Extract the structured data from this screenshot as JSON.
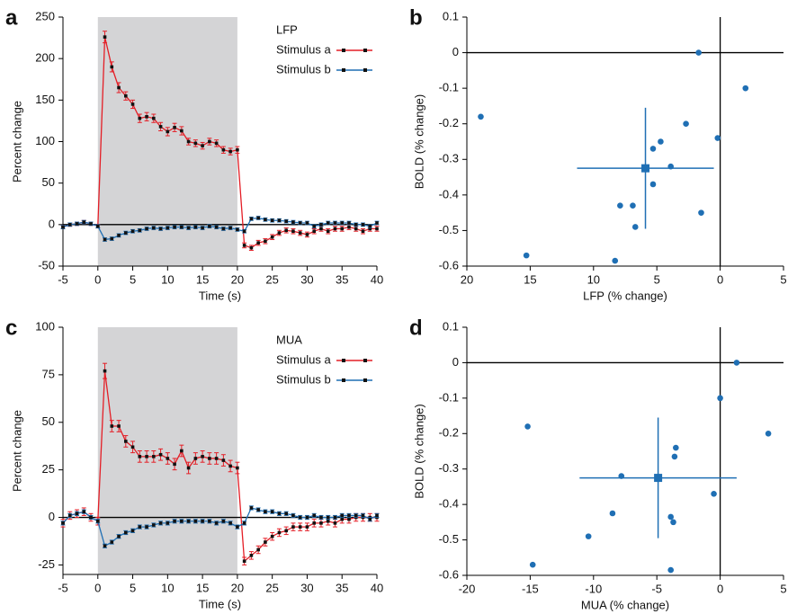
{
  "chart_data": [
    {
      "label": "a",
      "type": "line",
      "xlabel": "Time (s)",
      "ylabel": "Percent change",
      "legend_title": "LFP",
      "xlim": [
        -5,
        40
      ],
      "ylim": [
        -50,
        250
      ],
      "xticks": [
        -5,
        0,
        5,
        10,
        15,
        20,
        25,
        30,
        35,
        40
      ],
      "yticks": [
        -50,
        0,
        50,
        100,
        150,
        200,
        250
      ],
      "shade": [
        0,
        20
      ],
      "x": [
        -5,
        -4,
        -3,
        -2,
        -1,
        0,
        1,
        2,
        3,
        4,
        5,
        6,
        7,
        8,
        9,
        10,
        11,
        12,
        13,
        14,
        15,
        16,
        17,
        18,
        19,
        20,
        21,
        22,
        23,
        24,
        25,
        26,
        27,
        28,
        29,
        30,
        31,
        32,
        33,
        34,
        35,
        36,
        37,
        38,
        39,
        40
      ],
      "series": [
        {
          "name": "Stimulus a",
          "color": "#e41e26",
          "values": [
            -3,
            0,
            1,
            3,
            1,
            -2,
            226,
            190,
            165,
            155,
            145,
            128,
            130,
            128,
            118,
            112,
            117,
            113,
            100,
            98,
            95,
            100,
            98,
            90,
            88,
            90,
            -25,
            -28,
            -22,
            -20,
            -15,
            -10,
            -7,
            -8,
            -10,
            -12,
            -8,
            -5,
            -8,
            -5,
            -5,
            -3,
            -5,
            -8,
            -5,
            -5
          ],
          "errors": [
            2,
            2,
            2,
            2,
            2,
            2,
            7,
            6,
            6,
            5,
            5,
            5,
            5,
            5,
            5,
            5,
            5,
            5,
            4,
            4,
            4,
            4,
            4,
            4,
            4,
            4,
            3,
            3,
            3,
            3,
            3,
            3,
            3,
            3,
            3,
            3,
            3,
            3,
            3,
            3,
            3,
            3,
            3,
            3,
            3,
            3
          ]
        },
        {
          "name": "Stimulus b",
          "color": "#1f6fb4",
          "values": [
            -3,
            0,
            1,
            3,
            1,
            -2,
            -18,
            -17,
            -13,
            -10,
            -8,
            -7,
            -5,
            -4,
            -5,
            -4,
            -3,
            -3,
            -4,
            -3,
            -4,
            -2,
            -3,
            -5,
            -4,
            -6,
            -8,
            7,
            8,
            6,
            5,
            5,
            4,
            3,
            2,
            2,
            -2,
            0,
            2,
            2,
            2,
            2,
            0,
            0,
            -2,
            2
          ],
          "errors": [
            2,
            2,
            2,
            2,
            2,
            2,
            2,
            2,
            2,
            2,
            2,
            2,
            2,
            2,
            2,
            2,
            2,
            2,
            2,
            2,
            2,
            2,
            2,
            2,
            2,
            2,
            2,
            2,
            2,
            2,
            2,
            2,
            2,
            2,
            2,
            2,
            2,
            2,
            2,
            2,
            2,
            2,
            2,
            2,
            2,
            2
          ]
        }
      ]
    },
    {
      "label": "b",
      "type": "scatter",
      "xlabel": "LFP (% change)",
      "ylabel": "BOLD (% change)",
      "color": "#1f6fb4",
      "xlim": [
        -20,
        5
      ],
      "ylim": [
        -0.6,
        0.1
      ],
      "xticks": [
        {
          "value": -20,
          "label": "20"
        },
        {
          "value": -15,
          "label": "15"
        },
        {
          "value": -10,
          "label": "10"
        },
        {
          "value": -5,
          "label": "5"
        },
        0,
        5
      ],
      "yticks": [
        -0.6,
        -0.5,
        -0.4,
        -0.3,
        -0.2,
        -0.1,
        0,
        0.1
      ],
      "x": [
        -1.7,
        2,
        -18.9,
        -2.7,
        -0.2,
        -4.7,
        -5.3,
        -3.9,
        -5.3,
        -7.9,
        -6.9,
        -1.5,
        -6.7,
        -15.3,
        -8.3
      ],
      "values": [
        0,
        -0.1,
        -0.18,
        -0.2,
        -0.24,
        -0.25,
        -0.27,
        -0.32,
        -0.37,
        -0.43,
        -0.43,
        -0.45,
        -0.49,
        -0.57,
        -0.585
      ],
      "mean": {
        "x": -5.9,
        "y": -0.325,
        "xerr": 5.4,
        "yerr": 0.17
      }
    },
    {
      "label": "c",
      "type": "line",
      "xlabel": "Time (s)",
      "ylabel": "Percent change",
      "legend_title": "MUA",
      "xlim": [
        -5,
        40
      ],
      "ylim": [
        -30,
        100
      ],
      "xticks": [
        -5,
        0,
        5,
        10,
        15,
        20,
        25,
        30,
        35,
        40
      ],
      "yticks": [
        -25,
        0,
        25,
        50,
        75,
        100
      ],
      "shade": [
        0,
        20
      ],
      "x": [
        -5,
        -4,
        -3,
        -2,
        -1,
        0,
        1,
        2,
        3,
        4,
        5,
        6,
        7,
        8,
        9,
        10,
        11,
        12,
        13,
        14,
        15,
        16,
        17,
        18,
        19,
        20,
        21,
        22,
        23,
        24,
        25,
        26,
        27,
        28,
        29,
        30,
        31,
        32,
        33,
        34,
        35,
        36,
        37,
        38,
        39,
        40
      ],
      "series": [
        {
          "name": "Stimulus a",
          "color": "#e41e26",
          "values": [
            -3,
            1,
            2,
            3,
            0,
            -2,
            77,
            48,
            48,
            40,
            37,
            32,
            32,
            32,
            33,
            31,
            28,
            35,
            26,
            31,
            32,
            31,
            31,
            30,
            27,
            26,
            -23,
            -20,
            -17,
            -13,
            -10,
            -8,
            -7,
            -5,
            -5,
            -5,
            -3,
            -3,
            -2,
            -3,
            -1,
            -1,
            0,
            0,
            0,
            0
          ],
          "errors": [
            2,
            2,
            2,
            2,
            2,
            2,
            4,
            3,
            3,
            3,
            3,
            3,
            3,
            3,
            3,
            3,
            3,
            3,
            3,
            3,
            3,
            3,
            3,
            3,
            3,
            3,
            2,
            2,
            2,
            2,
            2,
            2,
            2,
            2,
            2,
            2,
            2,
            2,
            2,
            2,
            2,
            2,
            2,
            2,
            2,
            2
          ]
        },
        {
          "name": "Stimulus b",
          "color": "#1f6fb4",
          "values": [
            -3,
            1,
            2,
            3,
            0,
            -2,
            -15,
            -13,
            -10,
            -8,
            -7,
            -5,
            -5,
            -4,
            -3,
            -3,
            -2,
            -2,
            -2,
            -2,
            -2,
            -2,
            -3,
            -2,
            -3,
            -5,
            -3,
            5,
            4,
            3,
            3,
            2,
            2,
            1,
            0,
            0,
            1,
            0,
            0,
            0,
            1,
            1,
            1,
            1,
            -1,
            1
          ],
          "errors": [
            1,
            1,
            1,
            1,
            1,
            1,
            1,
            1,
            1,
            1,
            1,
            1,
            1,
            1,
            1,
            1,
            1,
            1,
            1,
            1,
            1,
            1,
            1,
            1,
            1,
            1,
            1,
            1,
            1,
            1,
            1,
            1,
            1,
            1,
            1,
            1,
            1,
            1,
            1,
            1,
            1,
            1,
            1,
            1,
            1,
            1
          ]
        }
      ]
    },
    {
      "label": "d",
      "type": "scatter",
      "xlabel": "MUA (% change)",
      "ylabel": "BOLD (% change)",
      "color": "#1f6fb4",
      "xlim": [
        -20,
        5
      ],
      "ylim": [
        -0.6,
        0.1
      ],
      "xticks": [
        -20,
        -15,
        -10,
        -5,
        0,
        5
      ],
      "yticks": [
        -0.6,
        -0.5,
        -0.4,
        -0.3,
        -0.2,
        -0.1,
        0,
        0.1
      ],
      "x": [
        1.3,
        0,
        -15.2,
        3.8,
        -3.5,
        -3.6,
        -7.8,
        -0.5,
        -8.5,
        -3.9,
        -3.7,
        -10.4,
        -14.8,
        -3.9
      ],
      "values": [
        0,
        -0.1,
        -0.18,
        -0.2,
        -0.24,
        -0.265,
        -0.32,
        -0.37,
        -0.425,
        -0.435,
        -0.45,
        -0.49,
        -0.57,
        -0.585
      ],
      "mean": {
        "x": -4.9,
        "y": -0.325,
        "xerr": 6.2,
        "yerr": 0.17
      }
    }
  ]
}
